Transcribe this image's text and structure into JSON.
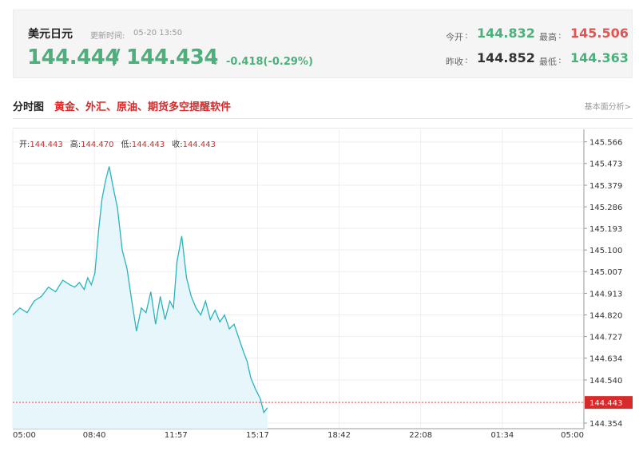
{
  "quote": {
    "pair_name": "美元日元",
    "update_label": "更新时间:",
    "update_time": "05-20 13:50",
    "bid": "144.444",
    "separator": "/",
    "ask": "144.434",
    "direction_arrow": "↓",
    "change": "-0.418(-0.29%)"
  },
  "stats": {
    "open_label": "今开",
    "open_value": "144.832",
    "high_label": "最高",
    "high_value": "145.506",
    "prev_close_label": "昨收",
    "prev_close_value": "144.852",
    "low_label": "最低",
    "low_value": "144.363",
    "separator": ":"
  },
  "section": {
    "title": "分时图",
    "promo": "黄金、外汇、原油、期货多空提醒软件",
    "link": "基本面分析>"
  },
  "info_row": {
    "open_label": "开:",
    "open_value": "144.443",
    "high_label": "高:",
    "high_value": "144.470",
    "low_label": "低:",
    "low_value": "144.443",
    "close_label": "收:",
    "close_value": "144.443"
  },
  "colors": {
    "up": "#e25555",
    "down": "#4caf7c",
    "line": "#2bb3c0",
    "fill": "#e6f6fa",
    "current_price_bg": "#d62b2b"
  },
  "chart_data": {
    "type": "area",
    "x_ticks": [
      "05:00",
      "08:40",
      "11:57",
      "15:17",
      "18:42",
      "22:08",
      "01:34",
      "05:00"
    ],
    "y_ticks": [
      "145.566",
      "145.473",
      "145.379",
      "145.286",
      "145.193",
      "145.100",
      "145.007",
      "144.913",
      "144.820",
      "144.727",
      "144.634",
      "144.540",
      "144.443",
      "144.354"
    ],
    "ylim": [
      144.33,
      145.62
    ],
    "current_price": 144.443,
    "current_price_label": "144.443",
    "x_hours_since_open": [
      0,
      0.3,
      0.6,
      0.9,
      1.2,
      1.5,
      1.8,
      2.1,
      2.4,
      2.6,
      2.8,
      3.0,
      3.15,
      3.3,
      3.45,
      3.6,
      3.75,
      3.9,
      4.05,
      4.2,
      4.4,
      4.6,
      4.8,
      5.0,
      5.2,
      5.4,
      5.6,
      5.8,
      6.0,
      6.2,
      6.4,
      6.6,
      6.75,
      6.9,
      7.1,
      7.3,
      7.5,
      7.7,
      7.9,
      8.1,
      8.3,
      8.5,
      8.7,
      8.9,
      9.1,
      9.3,
      9.5,
      9.7,
      9.85,
      10.0,
      10.2,
      10.4,
      10.55,
      10.7
    ],
    "values": [
      144.82,
      144.85,
      144.83,
      144.88,
      144.9,
      144.94,
      144.92,
      144.97,
      144.95,
      144.94,
      144.96,
      144.93,
      144.98,
      144.95,
      145.0,
      145.18,
      145.32,
      145.4,
      145.46,
      145.38,
      145.28,
      145.1,
      145.02,
      144.88,
      144.75,
      144.85,
      144.83,
      144.92,
      144.78,
      144.9,
      144.8,
      144.88,
      144.85,
      145.05,
      145.16,
      144.98,
      144.9,
      144.85,
      144.82,
      144.88,
      144.8,
      144.84,
      144.79,
      144.82,
      144.76,
      144.78,
      144.72,
      144.66,
      144.62,
      144.55,
      144.5,
      144.46,
      144.4,
      144.42
    ]
  }
}
